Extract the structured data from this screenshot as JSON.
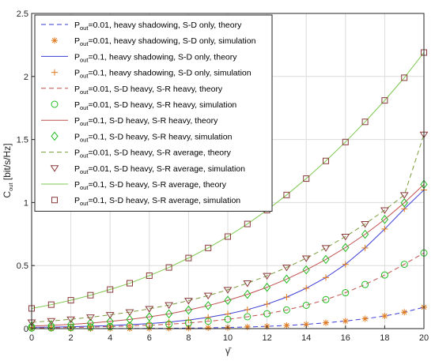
{
  "chart_data": {
    "type": "line",
    "title": "",
    "xlabel": "γ̄",
    "ylabel_main": "C",
    "ylabel_sub": "out",
    "ylabel_rest": " [bit/s/Hz]",
    "xlim": [
      0,
      20
    ],
    "ylim": [
      0,
      2.5
    ],
    "xticks": [
      0,
      2,
      4,
      6,
      8,
      10,
      12,
      14,
      16,
      18,
      20
    ],
    "yticks": [
      0,
      0.5,
      1,
      1.5,
      2,
      2.5
    ],
    "xtick_labels": [
      "0",
      "2",
      "4",
      "6",
      "8",
      "10",
      "12",
      "14",
      "16",
      "18",
      "20"
    ],
    "ytick_labels": [
      "0",
      "0.5",
      "1",
      "1.5",
      "2",
      "2.5"
    ],
    "grid": true,
    "legend_position": "top-left",
    "x": [
      0,
      1,
      2,
      3,
      4,
      5,
      6,
      7,
      8,
      9,
      10,
      11,
      12,
      13,
      14,
      15,
      16,
      17,
      18,
      19,
      20
    ],
    "series": [
      {
        "name_main": "P",
        "name_sub": "out",
        "name_rest": "=0.01, heavy shadowing, S-D only, theory",
        "color": "#3b3bd6",
        "line": "dash",
        "marker": "none",
        "values": [
          0.0,
          0.0,
          0.0,
          0.0,
          0.001,
          0.001,
          0.002,
          0.003,
          0.004,
          0.006,
          0.009,
          0.013,
          0.018,
          0.025,
          0.034,
          0.046,
          0.06,
          0.078,
          0.1,
          0.13,
          0.17
        ]
      },
      {
        "name_main": "P",
        "name_sub": "out",
        "name_rest": "=0.01, heavy shadowing, S-D only, simulation",
        "color": "#e07a1f",
        "line": "none",
        "marker": "asterisk",
        "values": [
          0.0,
          0.0,
          0.0,
          0.0,
          0.001,
          0.001,
          0.002,
          0.003,
          0.004,
          0.006,
          0.009,
          0.013,
          0.018,
          0.025,
          0.034,
          0.046,
          0.06,
          0.078,
          0.1,
          0.13,
          0.17
        ]
      },
      {
        "name_main": "P",
        "name_sub": "out",
        "name_rest": "=0.1, heavy shadowing, S-D only, theory",
        "color": "#3b3bd6",
        "line": "solid",
        "marker": "none",
        "values": [
          0.01,
          0.012,
          0.015,
          0.019,
          0.024,
          0.031,
          0.04,
          0.052,
          0.068,
          0.089,
          0.116,
          0.15,
          0.194,
          0.25,
          0.32,
          0.405,
          0.51,
          0.64,
          0.79,
          0.95,
          1.1
        ]
      },
      {
        "name_main": "P",
        "name_sub": "out",
        "name_rest": "=0.1, heavy shadowing, S-D only, simulation",
        "color": "#e07a1f",
        "line": "none",
        "marker": "plus",
        "values": [
          0.01,
          0.012,
          0.015,
          0.019,
          0.024,
          0.031,
          0.04,
          0.052,
          0.068,
          0.089,
          0.116,
          0.15,
          0.194,
          0.25,
          0.32,
          0.405,
          0.51,
          0.64,
          0.79,
          0.95,
          1.1
        ]
      },
      {
        "name_main": "P",
        "name_sub": "out",
        "name_rest": "=0.01, S-D heavy, S-R heavy, theory",
        "color": "#c0504d",
        "line": "dash",
        "marker": "none",
        "values": [
          0.005,
          0.007,
          0.009,
          0.012,
          0.016,
          0.021,
          0.027,
          0.035,
          0.045,
          0.058,
          0.074,
          0.094,
          0.118,
          0.148,
          0.185,
          0.23,
          0.285,
          0.35,
          0.425,
          0.51,
          0.6
        ]
      },
      {
        "name_main": "P",
        "name_sub": "out",
        "name_rest": "=0.01, S-D heavy, S-R heavy, simulation",
        "color": "#22bb22",
        "line": "none",
        "marker": "circle",
        "values": [
          0.005,
          0.007,
          0.009,
          0.012,
          0.016,
          0.021,
          0.027,
          0.035,
          0.045,
          0.058,
          0.074,
          0.094,
          0.118,
          0.148,
          0.185,
          0.23,
          0.285,
          0.35,
          0.425,
          0.51,
          0.6
        ]
      },
      {
        "name_main": "P",
        "name_sub": "out",
        "name_rest": "=0.1, S-D heavy, S-R heavy, theory",
        "color": "#c0504d",
        "line": "solid",
        "marker": "none",
        "values": [
          0.02,
          0.026,
          0.034,
          0.044,
          0.057,
          0.073,
          0.093,
          0.117,
          0.147,
          0.182,
          0.224,
          0.272,
          0.328,
          0.393,
          0.466,
          0.549,
          0.643,
          0.748,
          0.866,
          0.998,
          1.144
        ]
      },
      {
        "name_main": "P",
        "name_sub": "out",
        "name_rest": "=0.1, S-D heavy, S-R heavy, simulation",
        "color": "#22bb22",
        "line": "none",
        "marker": "diamond",
        "values": [
          0.02,
          0.026,
          0.034,
          0.044,
          0.057,
          0.073,
          0.093,
          0.117,
          0.147,
          0.182,
          0.224,
          0.272,
          0.328,
          0.393,
          0.466,
          0.549,
          0.643,
          0.748,
          0.866,
          0.998,
          1.144
        ]
      },
      {
        "name_main": "P",
        "name_sub": "out",
        "name_rest": "=0.01, S-D heavy, S-R average, theory",
        "color": "#7a9a3a",
        "line": "dash",
        "marker": "none",
        "values": [
          0.05,
          0.061,
          0.074,
          0.09,
          0.109,
          0.131,
          0.157,
          0.187,
          0.222,
          0.262,
          0.308,
          0.36,
          0.419,
          0.485,
          0.558,
          0.64,
          0.73,
          0.83,
          0.94,
          1.06,
          1.54
        ]
      },
      {
        "name_main": "P",
        "name_sub": "out",
        "name_rest": "=0.01, S-D heavy, S-R average, simulation",
        "color": "#8b3a3a",
        "line": "none",
        "marker": "triangle-down",
        "values": [
          0.05,
          0.061,
          0.074,
          0.09,
          0.109,
          0.131,
          0.157,
          0.187,
          0.222,
          0.262,
          0.308,
          0.36,
          0.419,
          0.485,
          0.558,
          0.64,
          0.73,
          0.83,
          0.94,
          1.06,
          1.54
        ]
      },
      {
        "name_main": "P",
        "name_sub": "out",
        "name_rest": "=0.1, S-D heavy, S-R average, theory",
        "color": "#7ec850",
        "line": "solid",
        "marker": "none",
        "values": [
          0.16,
          0.19,
          0.225,
          0.265,
          0.31,
          0.36,
          0.42,
          0.485,
          0.56,
          0.64,
          0.73,
          0.83,
          0.94,
          1.06,
          1.19,
          1.33,
          1.48,
          1.64,
          1.81,
          1.99,
          2.19
        ]
      },
      {
        "name_main": "P",
        "name_sub": "out",
        "name_rest": "=0.1, S-D heavy, S-R average, simulation",
        "color": "#8b3a3a",
        "line": "none",
        "marker": "square",
        "values": [
          0.16,
          0.19,
          0.225,
          0.265,
          0.31,
          0.36,
          0.42,
          0.485,
          0.56,
          0.64,
          0.73,
          0.83,
          0.94,
          1.06,
          1.19,
          1.33,
          1.48,
          1.64,
          1.81,
          1.99,
          2.19
        ]
      }
    ]
  }
}
